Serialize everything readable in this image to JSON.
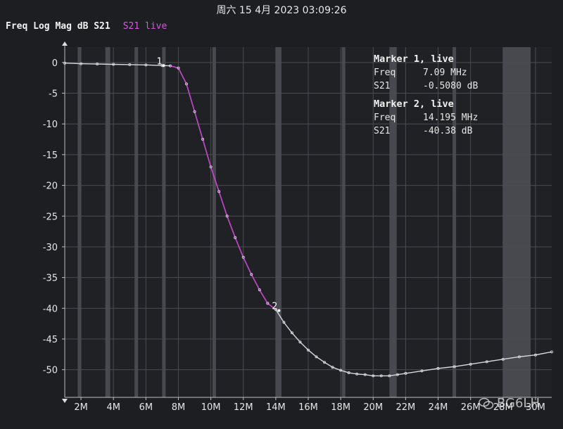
{
  "header": {
    "timestamp": "周六 15 4月 2023 03:09:26",
    "trace_label": "Freq Log Mag dB S21",
    "live_label": "S21 live"
  },
  "colors": {
    "background": "#1c1e22",
    "plot_bg": "#1f2125",
    "trace": "#d8d8e0",
    "trace_live": "#c040c8",
    "grid": "#4a4c52",
    "band": "#55575d"
  },
  "markers": [
    {
      "title": "Marker 1, live",
      "id": "1",
      "freq_label": "Freq",
      "freq": "7.09 MHz",
      "s_label": "S21",
      "value": "-0.5080 dB",
      "x": 7.09,
      "y": -0.508
    },
    {
      "title": "Marker 2, live",
      "id": "2",
      "freq_label": "Freq",
      "freq": "14.195 MHz",
      "s_label": "S21",
      "value": "-40.38 dB",
      "x": 14.195,
      "y": -40.38
    }
  ],
  "watermark": "BG6LH",
  "chart_data": {
    "type": "line",
    "title": "Freq Log Mag dB S21",
    "xlabel": "",
    "ylabel": "",
    "xlim": [
      1,
      31
    ],
    "ylim": [
      -54.5,
      2.5
    ],
    "x_ticks": [
      2,
      4,
      6,
      8,
      10,
      12,
      14,
      16,
      18,
      20,
      22,
      24,
      26,
      28,
      30
    ],
    "x_tick_labels": [
      "2M",
      "4M",
      "6M",
      "8M",
      "10M",
      "12M",
      "14M",
      "16M",
      "18M",
      "20M",
      "22M",
      "24M",
      "26M",
      "28M",
      "30M"
    ],
    "y_ticks": [
      0,
      -5,
      -10,
      -15,
      -20,
      -25,
      -30,
      -35,
      -40,
      -45,
      -50
    ],
    "y_tick_labels": [
      "0",
      "-5",
      "-10",
      "-15",
      "-20",
      "-25",
      "-30",
      "-35",
      "-40",
      "-45",
      "-50"
    ],
    "grid": true,
    "bands": [
      [
        1.8,
        2.0
      ],
      [
        3.5,
        3.8
      ],
      [
        5.3,
        5.4
      ],
      [
        7.0,
        7.2
      ],
      [
        10.1,
        10.15
      ],
      [
        14.0,
        14.35
      ],
      [
        18.068,
        18.168
      ],
      [
        21.0,
        21.45
      ],
      [
        24.89,
        24.99
      ],
      [
        28.0,
        29.7
      ]
    ],
    "series": [
      {
        "name": "S21",
        "x": [
          1,
          2,
          3,
          4,
          5,
          6,
          7,
          7.5,
          8,
          8.5,
          9,
          9.5,
          10,
          10.5,
          11,
          11.5,
          12,
          12.5,
          13,
          13.5,
          14,
          14.5,
          15,
          15.5,
          16,
          16.5,
          17,
          17.5,
          18,
          18.5,
          19,
          19.5,
          20,
          20.5,
          21,
          21.5,
          22,
          23,
          24,
          25,
          26,
          27,
          28,
          29,
          30,
          31
        ],
        "y": [
          -0.1,
          -0.2,
          -0.25,
          -0.3,
          -0.35,
          -0.4,
          -0.5,
          -0.55,
          -0.9,
          -3.5,
          -8.0,
          -12.5,
          -17.0,
          -21.0,
          -25.0,
          -28.5,
          -31.7,
          -34.5,
          -37.0,
          -39.2,
          -40.2,
          -42.3,
          -44.0,
          -45.5,
          -46.8,
          -47.9,
          -48.8,
          -49.6,
          -50.1,
          -50.5,
          -50.7,
          -50.8,
          -51.0,
          -51.0,
          -51.0,
          -50.8,
          -50.6,
          -50.2,
          -49.8,
          -49.5,
          -49.1,
          -48.7,
          -48.3,
          -47.9,
          -47.6,
          -47.1
        ]
      }
    ]
  }
}
